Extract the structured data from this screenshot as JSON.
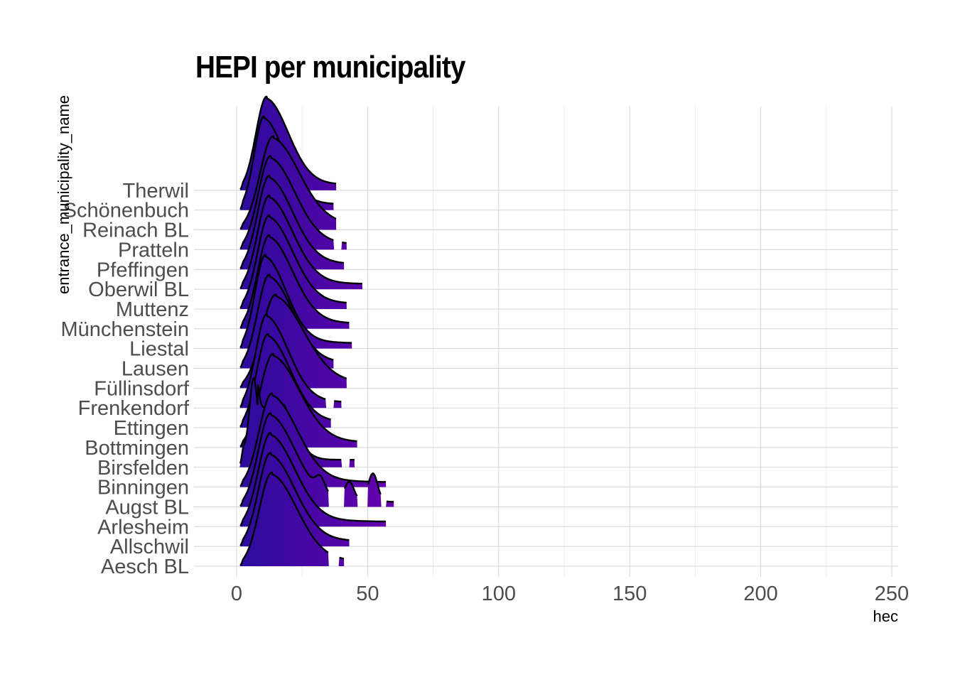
{
  "chart_data": {
    "type": "ridgeline",
    "title": "HEPI per municipality",
    "xlabel": "hec",
    "ylabel": "entrance_municipality_name",
    "xlim": [
      -15,
      252
    ],
    "xticks": [
      0,
      50,
      100,
      150,
      200,
      250
    ],
    "grid": true,
    "fill_colors": {
      "low": "#2a0c9c",
      "high": "#6a00b0"
    },
    "categories": [
      "Aesch BL",
      "Allschwil",
      "Arlesheim",
      "Augst BL",
      "Binningen",
      "Birsfelden",
      "Bottmingen",
      "Ettingen",
      "Frenkendorf",
      "Füllinsdorf",
      "Lausen",
      "Liestal",
      "Münchenstein",
      "Muttenz",
      "Oberwil BL",
      "Pfeffingen",
      "Pratteln",
      "Reinach BL",
      "Schönenbuch",
      "Therwil"
    ],
    "series": [
      {
        "name": "Aesch BL",
        "peak": 13.5,
        "max": 41,
        "gaps": [
          [
            35,
            39
          ]
        ]
      },
      {
        "name": "Allschwil",
        "peak": 13,
        "max": 43
      },
      {
        "name": "Arlesheim",
        "peak": 13,
        "max": 57
      },
      {
        "name": "Augst BL",
        "peak": 13,
        "max": 60,
        "bumps": [
          [
            32,
            0.15
          ],
          [
            43,
            0.2
          ],
          [
            52,
            0.3
          ]
        ],
        "gaps": [
          [
            35,
            41
          ],
          [
            46,
            50
          ],
          [
            55,
            57
          ]
        ]
      },
      {
        "name": "Binningen",
        "peak": 13.5,
        "max": 57
      },
      {
        "name": "Birsfelden",
        "peak": 6.5,
        "max": 45,
        "bimodal": 14,
        "gaps": [
          [
            40,
            43
          ]
        ]
      },
      {
        "name": "Bottmingen",
        "peak": 14,
        "max": 46
      },
      {
        "name": "Ettingen",
        "peak": 12,
        "max": 36
      },
      {
        "name": "Frenkendorf",
        "peak": 11.5,
        "max": 40,
        "gaps": [
          [
            34,
            37
          ]
        ]
      },
      {
        "name": "Füllinsdorf",
        "peak": 15,
        "max": 42
      },
      {
        "name": "Lausen",
        "peak": 12.5,
        "max": 37
      },
      {
        "name": "Liestal",
        "peak": 11,
        "max": 44
      },
      {
        "name": "Münchenstein",
        "peak": 12.5,
        "max": 43
      },
      {
        "name": "Muttenz",
        "peak": 12.5,
        "max": 42
      },
      {
        "name": "Oberwil BL",
        "peak": 12.5,
        "max": 48
      },
      {
        "name": "Pfeffingen",
        "peak": 12.5,
        "max": 41
      },
      {
        "name": "Pratteln",
        "peak": 13,
        "max": 42,
        "gaps": [
          [
            37,
            40
          ]
        ]
      },
      {
        "name": "Reinach BL",
        "peak": 14,
        "max": 38
      },
      {
        "name": "Schönenbuch",
        "peak": 10.5,
        "max": 37
      },
      {
        "name": "Therwil",
        "peak": 11.5,
        "max": 38
      }
    ]
  }
}
